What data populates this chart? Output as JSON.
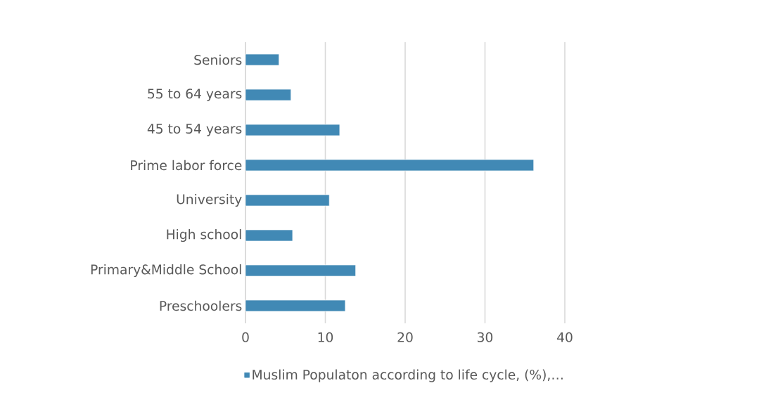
{
  "chart_data": {
    "type": "bar",
    "orientation": "horizontal",
    "categories": [
      "Seniors",
      "55 to 64 years",
      "45 to 54 years",
      "Prime labor force",
      "University",
      "High school",
      "Primary&Middle School",
      "Preschoolers"
    ],
    "series": [
      {
        "name": "Muslim Populaton according to life cycle, (%),…",
        "color": "#4189b5",
        "values": [
          4.2,
          5.7,
          11.8,
          36.1,
          10.5,
          5.9,
          13.8,
          12.5
        ]
      }
    ],
    "xlim": [
      0,
      40
    ],
    "xticks": [
      0,
      10,
      20,
      30,
      40
    ],
    "grid": "x",
    "legend": "bottom"
  }
}
